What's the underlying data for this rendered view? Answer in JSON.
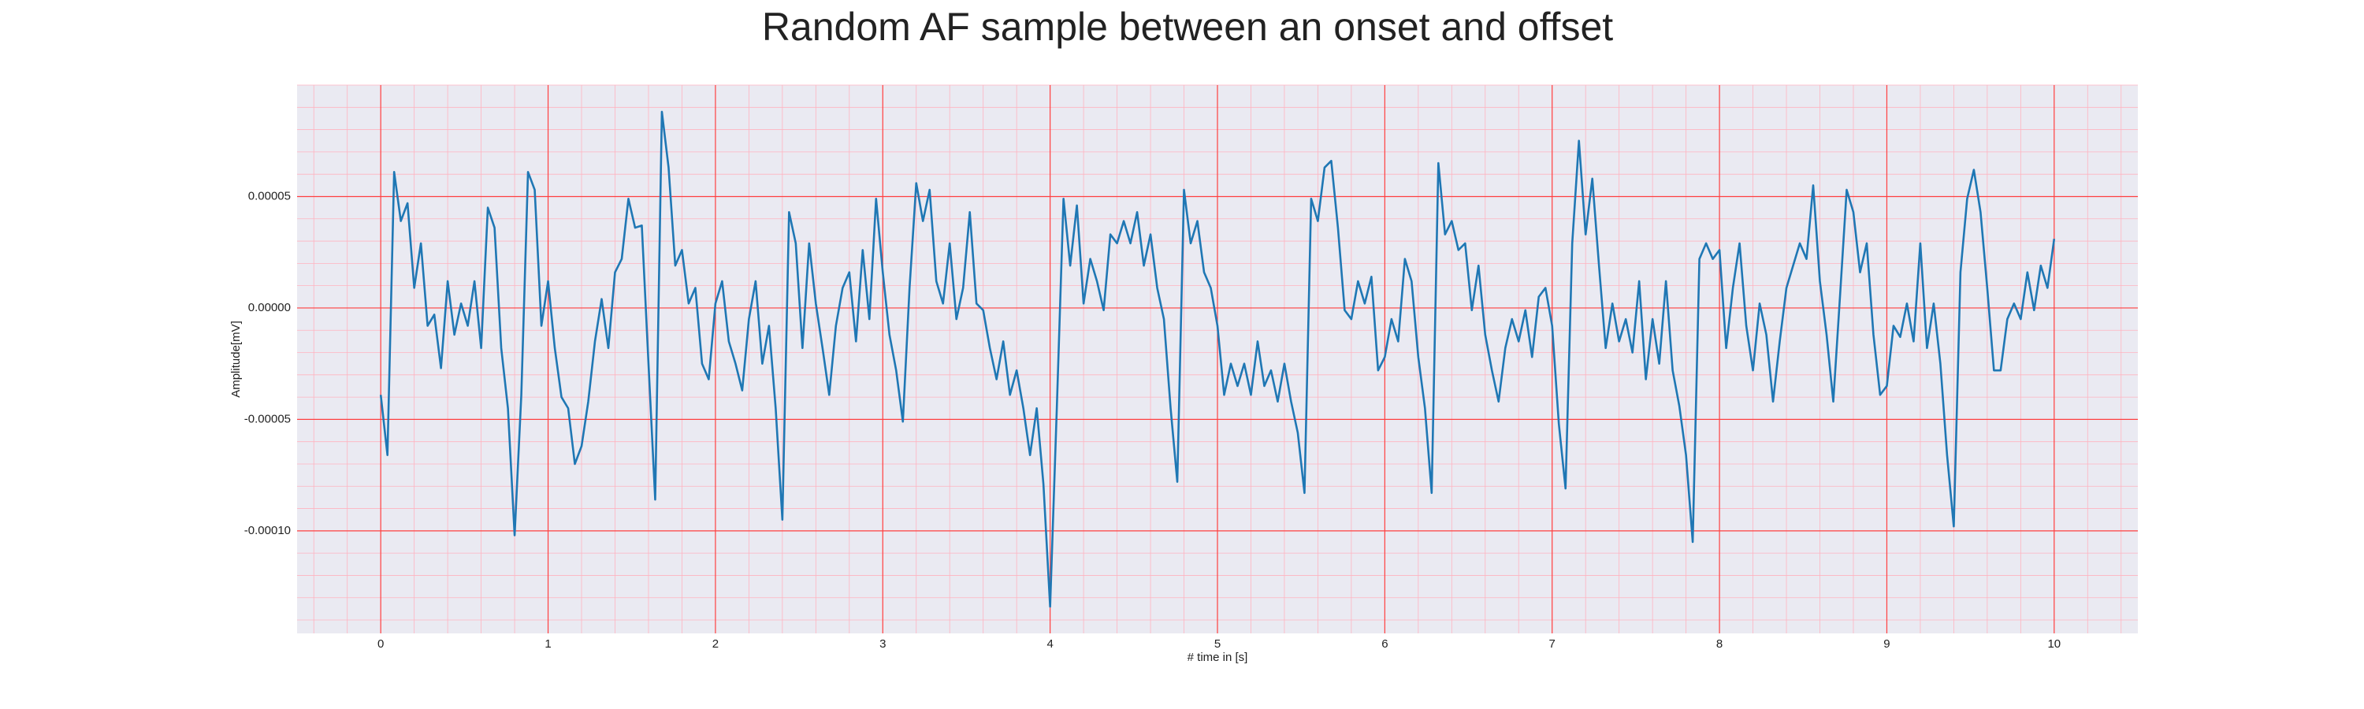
{
  "chart_data": {
    "type": "line",
    "title": "Random AF sample between an onset and offset",
    "xlabel": "# time in [s]",
    "ylabel": "Amplitude[mV]",
    "color": "#1f77b4",
    "grid": true,
    "minor_grid": true,
    "xlim": [
      -0.5,
      10.5
    ],
    "ylim": [
      -0.000146,
      0.0001
    ],
    "xticks": [
      0,
      1,
      2,
      3,
      4,
      5,
      6,
      7,
      8,
      9,
      10
    ],
    "yticks": [
      {
        "value": -0.0001,
        "label": "-0.00010"
      },
      -5e-05,
      {
        "value": 0,
        "label": "0.00000"
      },
      5e-05
    ],
    "x": [
      0,
      0.04,
      0.08,
      0.12,
      0.16,
      0.2,
      0.24,
      0.28,
      0.32,
      0.36,
      0.4,
      0.44,
      0.48,
      0.52,
      0.56,
      0.6,
      0.64,
      0.68,
      0.72,
      0.76,
      0.8,
      0.84,
      0.88,
      0.92,
      0.96,
      1,
      1.04,
      1.08,
      1.12,
      1.16,
      1.2,
      1.24,
      1.28,
      1.32,
      1.36,
      1.4,
      1.44,
      1.48,
      1.52,
      1.56,
      1.6,
      1.64,
      1.68,
      1.72,
      1.76,
      1.8,
      1.84,
      1.88,
      1.92,
      1.96,
      2,
      2.04,
      2.08,
      2.12,
      2.16,
      2.2,
      2.24,
      2.28,
      2.32,
      2.36,
      2.4,
      2.44,
      2.48,
      2.52,
      2.56,
      2.6,
      2.64,
      2.68,
      2.72,
      2.76,
      2.8,
      2.84,
      2.88,
      2.92,
      2.96,
      3,
      3.04,
      3.08,
      3.12,
      3.16,
      3.2,
      3.24,
      3.28,
      3.32,
      3.36,
      3.4,
      3.44,
      3.48,
      3.52,
      3.56,
      3.6,
      3.64,
      3.68,
      3.72,
      3.76,
      3.8,
      3.84,
      3.88,
      3.92,
      3.96,
      4,
      4.04,
      4.08,
      4.12,
      4.16,
      4.2,
      4.24,
      4.28,
      4.32,
      4.36,
      4.4,
      4.44,
      4.48,
      4.52,
      4.56,
      4.6,
      4.64,
      4.68,
      4.72,
      4.76,
      4.8,
      4.84,
      4.88,
      4.92,
      4.96,
      5,
      5.04,
      5.08,
      5.12,
      5.16,
      5.2,
      5.24,
      5.28,
      5.32,
      5.36,
      5.4,
      5.44,
      5.48,
      5.52,
      5.56,
      5.6,
      5.64,
      5.68,
      5.72,
      5.76,
      5.8,
      5.84,
      5.88,
      5.92,
      5.96,
      6,
      6.04,
      6.08,
      6.12,
      6.16,
      6.2,
      6.24,
      6.28,
      6.32,
      6.36,
      6.4,
      6.44,
      6.48,
      6.52,
      6.56,
      6.6,
      6.64,
      6.68,
      6.72,
      6.76,
      6.8,
      6.84,
      6.88,
      6.92,
      6.96,
      7,
      7.04,
      7.08,
      7.12,
      7.16,
      7.2,
      7.24,
      7.28,
      7.32,
      7.36,
      7.4,
      7.44,
      7.48,
      7.52,
      7.56,
      7.6,
      7.64,
      7.68,
      7.72,
      7.76,
      7.8,
      7.84,
      7.88,
      7.92,
      7.96,
      8,
      8.04,
      8.08,
      8.12,
      8.16,
      8.2,
      8.24,
      8.28,
      8.32,
      8.36,
      8.4,
      8.44,
      8.48,
      8.52,
      8.56,
      8.6,
      8.64,
      8.68,
      8.72,
      8.76,
      8.8,
      8.84,
      8.88,
      8.92,
      8.96,
      9,
      9.04,
      9.08,
      9.12,
      9.16,
      9.2,
      9.24,
      9.28,
      9.32,
      9.36,
      9.4,
      9.44,
      9.48,
      9.52,
      9.56,
      9.6,
      9.64,
      9.68,
      9.72,
      9.76,
      9.8,
      9.84,
      9.88,
      9.92,
      9.96,
      10
    ],
    "values": [
      -3.9e-05,
      -6.6e-05,
      6.1e-05,
      3.9e-05,
      4.7e-05,
      9e-06,
      2.9e-05,
      -8e-06,
      -3e-06,
      -2.7e-05,
      1.2e-05,
      -1.2e-05,
      2e-06,
      -8e-06,
      1.2e-05,
      -1.8e-05,
      4.5e-05,
      3.6e-05,
      -1.8e-05,
      -4.5e-05,
      -0.000102,
      -3.9e-05,
      6.1e-05,
      5.3e-05,
      -8e-06,
      1.2e-05,
      -1.8e-05,
      -4e-05,
      -4.5e-05,
      -7e-05,
      -6.2e-05,
      -4.2e-05,
      -1.5e-05,
      4e-06,
      -1.8e-05,
      1.6e-05,
      2.2e-05,
      4.9e-05,
      3.6e-05,
      3.7e-05,
      -2.5e-05,
      -8.6e-05,
      8.8e-05,
      6.3e-05,
      1.9e-05,
      2.6e-05,
      2e-06,
      9e-06,
      -2.5e-05,
      -3.2e-05,
      2e-06,
      1.2e-05,
      -1.5e-05,
      -2.5e-05,
      -3.7e-05,
      -5e-06,
      1.2e-05,
      -2.5e-05,
      -8e-06,
      -4.5e-05,
      -9.5e-05,
      4.3e-05,
      2.9e-05,
      -1.8e-05,
      2.9e-05,
      2e-06,
      -1.8e-05,
      -3.9e-05,
      -8e-06,
      9e-06,
      1.6e-05,
      -1.5e-05,
      2.6e-05,
      -5e-06,
      4.9e-05,
      1.6e-05,
      -1.2e-05,
      -2.8e-05,
      -5.1e-05,
      9e-06,
      5.6e-05,
      3.9e-05,
      5.3e-05,
      1.2e-05,
      2e-06,
      2.9e-05,
      -5e-06,
      9e-06,
      4.3e-05,
      2e-06,
      -1e-06,
      -1.8e-05,
      -3.2e-05,
      -1.5e-05,
      -3.9e-05,
      -2.8e-05,
      -4.5e-05,
      -6.6e-05,
      -4.5e-05,
      -7.9e-05,
      -0.000134,
      -4.5e-05,
      4.9e-05,
      1.9e-05,
      4.6e-05,
      2e-06,
      2.2e-05,
      1.2e-05,
      -1e-06,
      3.3e-05,
      2.9e-05,
      3.9e-05,
      2.9e-05,
      4.3e-05,
      1.9e-05,
      3.3e-05,
      9e-06,
      -5e-06,
      -4.5e-05,
      -7.8e-05,
      5.3e-05,
      2.9e-05,
      3.9e-05,
      1.6e-05,
      9e-06,
      -8e-06,
      -3.9e-05,
      -2.5e-05,
      -3.5e-05,
      -2.5e-05,
      -3.9e-05,
      -1.5e-05,
      -3.5e-05,
      -2.8e-05,
      -4.2e-05,
      -2.5e-05,
      -4.2e-05,
      -5.6e-05,
      -8.3e-05,
      4.9e-05,
      3.9e-05,
      6.3e-05,
      6.6e-05,
      3.6e-05,
      -1e-06,
      -5e-06,
      1.2e-05,
      2e-06,
      1.4e-05,
      -2.8e-05,
      -2.2e-05,
      -5e-06,
      -1.5e-05,
      2.2e-05,
      1.2e-05,
      -2.2e-05,
      -4.5e-05,
      -8.3e-05,
      6.5e-05,
      3.3e-05,
      3.9e-05,
      2.6e-05,
      2.9e-05,
      -1e-06,
      1.9e-05,
      -1.2e-05,
      -2.8e-05,
      -4.2e-05,
      -1.8e-05,
      -5e-06,
      -1.5e-05,
      -1e-06,
      -2.2e-05,
      5e-06,
      9e-06,
      -8e-06,
      -5.2e-05,
      -8.1e-05,
      2.9e-05,
      7.5e-05,
      3.3e-05,
      5.8e-05,
      1.9e-05,
      -1.8e-05,
      2e-06,
      -1.5e-05,
      -5e-06,
      -2e-05,
      1.2e-05,
      -3.2e-05,
      -5e-06,
      -2.5e-05,
      1.2e-05,
      -2.8e-05,
      -4.4e-05,
      -6.6e-05,
      -0.000105,
      2.2e-05,
      2.9e-05,
      2.2e-05,
      2.6e-05,
      -1.8e-05,
      9e-06,
      2.9e-05,
      -8e-06,
      -2.8e-05,
      2e-06,
      -1.2e-05,
      -4.2e-05,
      -1.5e-05,
      9e-06,
      1.9e-05,
      2.9e-05,
      2.2e-05,
      5.5e-05,
      1.2e-05,
      -1.2e-05,
      -4.2e-05,
      5e-06,
      5.3e-05,
      4.3e-05,
      1.6e-05,
      2.9e-05,
      -1.2e-05,
      -3.9e-05,
      -3.5e-05,
      -8e-06,
      -1.3e-05,
      2e-06,
      -1.5e-05,
      2.9e-05,
      -1.8e-05,
      2e-06,
      -2.5e-05,
      -6.6e-05,
      -9.8e-05,
      1.6e-05,
      4.9e-05,
      6.2e-05,
      4.3e-05,
      9e-06,
      -2.8e-05,
      -2.8e-05,
      -5e-06,
      2e-06,
      -5e-06,
      1.6e-05,
      -1e-06,
      1.9e-05,
      9e-06,
      3.1e-05
    ]
  }
}
